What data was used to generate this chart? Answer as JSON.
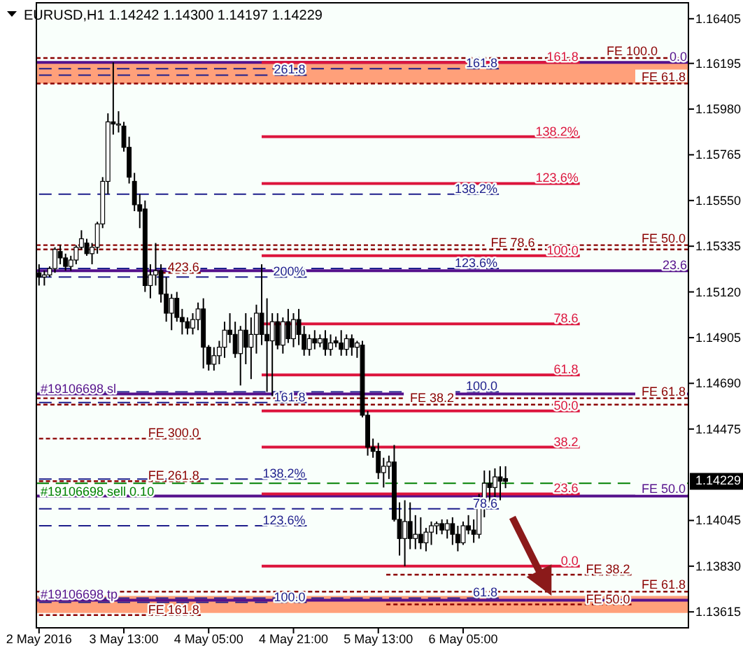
{
  "chart_data": {
    "type": "candlestick",
    "title": "EURUSD,H1  1.14242 1.14300 1.14197 1.14229",
    "x": [
      "2016-05-02T21:00",
      "2016-05-02T22:00",
      "2016-05-02T23:00",
      "2016-05-03T00:00",
      "2016-05-03T01:00",
      "2016-05-03T02:00",
      "2016-05-03T03:00",
      "2016-05-03T04:00",
      "2016-05-03T05:00",
      "2016-05-03T06:00",
      "2016-05-03T07:00",
      "2016-05-03T08:00",
      "2016-05-03T09:00",
      "2016-05-03T10:00",
      "2016-05-03T11:00",
      "2016-05-03T12:00",
      "2016-05-03T13:00",
      "2016-05-03T14:00",
      "2016-05-03T15:00",
      "2016-05-03T16:00",
      "2016-05-03T17:00",
      "2016-05-03T18:00",
      "2016-05-03T19:00",
      "2016-05-03T20:00",
      "2016-05-03T21:00",
      "2016-05-03T22:00",
      "2016-05-03T23:00",
      "2016-05-04T00:00",
      "2016-05-04T01:00",
      "2016-05-04T02:00",
      "2016-05-04T03:00",
      "2016-05-04T04:00",
      "2016-05-04T05:00",
      "2016-05-04T06:00",
      "2016-05-04T07:00",
      "2016-05-04T08:00",
      "2016-05-04T09:00",
      "2016-05-04T10:00",
      "2016-05-04T11:00",
      "2016-05-04T12:00",
      "2016-05-04T13:00",
      "2016-05-04T14:00",
      "2016-05-04T15:00",
      "2016-05-04T16:00",
      "2016-05-04T17:00",
      "2016-05-04T18:00",
      "2016-05-04T19:00",
      "2016-05-04T20:00",
      "2016-05-04T21:00",
      "2016-05-04T22:00",
      "2016-05-04T23:00",
      "2016-05-05T00:00",
      "2016-05-05T01:00",
      "2016-05-05T02:00",
      "2016-05-05T03:00",
      "2016-05-05T04:00",
      "2016-05-05T05:00",
      "2016-05-05T06:00",
      "2016-05-05T07:00",
      "2016-05-05T08:00",
      "2016-05-05T09:00",
      "2016-05-05T10:00",
      "2016-05-05T11:00",
      "2016-05-05T12:00",
      "2016-05-05T13:00",
      "2016-05-05T14:00",
      "2016-05-05T15:00",
      "2016-05-05T16:00",
      "2016-05-05T17:00",
      "2016-05-05T18:00",
      "2016-05-05T19:00",
      "2016-05-05T20:00",
      "2016-05-05T21:00",
      "2016-05-05T22:00",
      "2016-05-05T23:00",
      "2016-05-06T00:00",
      "2016-05-06T01:00",
      "2016-05-06T02:00",
      "2016-05-06T03:00",
      "2016-05-06T04:00",
      "2016-05-06T05:00",
      "2016-05-06T06:00",
      "2016-05-06T07:00",
      "2016-05-06T08:00",
      "2016-05-06T09:00",
      "2016-05-06T10:00",
      "2016-05-06T11:00",
      "2016-05-06T12:00",
      "2016-05-06T13:00"
    ],
    "ohlc": [
      [
        1.1521,
        1.1525,
        1.1515,
        1.1519
      ],
      [
        1.1519,
        1.1522,
        1.1515,
        1.152
      ],
      [
        1.152,
        1.1524,
        1.1519,
        1.1523
      ],
      [
        1.1523,
        1.1533,
        1.1521,
        1.1532
      ],
      [
        1.1531,
        1.1534,
        1.1525,
        1.1528
      ],
      [
        1.1528,
        1.153,
        1.1522,
        1.1524
      ],
      [
        1.1524,
        1.1529,
        1.1522,
        1.1527
      ],
      [
        1.1527,
        1.1534,
        1.1525,
        1.1533
      ],
      [
        1.1533,
        1.1541,
        1.1532,
        1.1537
      ],
      [
        1.1535,
        1.1537,
        1.1529,
        1.153
      ],
      [
        1.153,
        1.1535,
        1.1525,
        1.1533
      ],
      [
        1.1533,
        1.1545,
        1.153,
        1.1544
      ],
      [
        1.1544,
        1.1566,
        1.1542,
        1.1564
      ],
      [
        1.1564,
        1.1596,
        1.1558,
        1.1592
      ],
      [
        1.1592,
        1.162,
        1.1586,
        1.1591
      ],
      [
        1.1591,
        1.1597,
        1.1587,
        1.1591
      ],
      [
        1.159,
        1.1592,
        1.1578,
        1.158
      ],
      [
        1.158,
        1.1585,
        1.1563,
        1.1566
      ],
      [
        1.1564,
        1.1568,
        1.155,
        1.1553
      ],
      [
        1.1553,
        1.1558,
        1.1542,
        1.155
      ],
      [
        1.1551,
        1.1555,
        1.1512,
        1.1515
      ],
      [
        1.1515,
        1.1525,
        1.1509,
        1.152
      ],
      [
        1.152,
        1.1535,
        1.1515,
        1.1522
      ],
      [
        1.1522,
        1.1525,
        1.1507,
        1.1511
      ],
      [
        1.1511,
        1.1519,
        1.1498,
        1.1502
      ],
      [
        1.1502,
        1.1511,
        1.1494,
        1.1509
      ],
      [
        1.1509,
        1.1512,
        1.1498,
        1.15
      ],
      [
        1.15,
        1.1504,
        1.1492,
        1.1498
      ],
      [
        1.1498,
        1.15,
        1.1492,
        1.1495
      ],
      [
        1.1495,
        1.1502,
        1.1492,
        1.1499
      ],
      [
        1.1499,
        1.1507,
        1.1494,
        1.1504
      ],
      [
        1.1504,
        1.1509,
        1.1476,
        1.1486
      ],
      [
        1.1486,
        1.1487,
        1.1475,
        1.1478
      ],
      [
        1.1478,
        1.1486,
        1.1475,
        1.1482
      ],
      [
        1.1482,
        1.1489,
        1.1478,
        1.1486
      ],
      [
        1.1486,
        1.1498,
        1.1481,
        1.1494
      ],
      [
        1.1494,
        1.1502,
        1.1488,
        1.1492
      ],
      [
        1.1492,
        1.1498,
        1.1481,
        1.1483
      ],
      [
        1.1483,
        1.1496,
        1.1468,
        1.1494
      ],
      [
        1.1494,
        1.1502,
        1.1478,
        1.1486
      ],
      [
        1.1486,
        1.15,
        1.1471,
        1.1492
      ],
      [
        1.1492,
        1.1506,
        1.1483,
        1.1502
      ],
      [
        1.1502,
        1.1525,
        1.1487,
        1.1492
      ],
      [
        1.1492,
        1.1509,
        1.1465,
        1.1489
      ],
      [
        1.1489,
        1.1502,
        1.1463,
        1.1498
      ],
      [
        1.1498,
        1.1502,
        1.1485,
        1.1487
      ],
      [
        1.1487,
        1.15,
        1.1483,
        1.1498
      ],
      [
        1.1498,
        1.1504,
        1.1488,
        1.149
      ],
      [
        1.149,
        1.1502,
        1.1486,
        1.1499
      ],
      [
        1.1499,
        1.1504,
        1.1487,
        1.1492
      ],
      [
        1.1492,
        1.1496,
        1.1482,
        1.1485
      ],
      [
        1.1485,
        1.1492,
        1.1482,
        1.149
      ],
      [
        1.149,
        1.1494,
        1.1485,
        1.1488
      ],
      [
        1.1488,
        1.1492,
        1.1486,
        1.149
      ],
      [
        1.149,
        1.1494,
        1.1482,
        1.1485
      ],
      [
        1.1485,
        1.1492,
        1.1482,
        1.1488
      ],
      [
        1.1489,
        1.1491,
        1.1486,
        1.1488
      ],
      [
        1.1488,
        1.1494,
        1.1482,
        1.1485
      ],
      [
        1.1485,
        1.1492,
        1.1482,
        1.149
      ],
      [
        1.149,
        1.1492,
        1.1482,
        1.1486
      ],
      [
        1.1486,
        1.1489,
        1.1481,
        1.1488
      ],
      [
        1.1487,
        1.1489,
        1.1453,
        1.1454
      ],
      [
        1.1454,
        1.1456,
        1.1435,
        1.1439
      ],
      [
        1.1439,
        1.1443,
        1.1434,
        1.1437
      ],
      [
        1.1437,
        1.1441,
        1.1424,
        1.1427
      ],
      [
        1.1427,
        1.1434,
        1.142,
        1.143
      ],
      [
        1.143,
        1.1435,
        1.1424,
        1.1432
      ],
      [
        1.1432,
        1.144,
        1.1404,
        1.1405
      ],
      [
        1.1405,
        1.1413,
        1.1388,
        1.1396
      ],
      [
        1.1396,
        1.1414,
        1.1383,
        1.1404
      ],
      [
        1.1404,
        1.1413,
        1.1391,
        1.1396
      ],
      [
        1.1396,
        1.1407,
        1.1391,
        1.1398
      ],
      [
        1.1398,
        1.1406,
        1.1391,
        1.1394
      ],
      [
        1.1394,
        1.1401,
        1.139,
        1.1399
      ],
      [
        1.1399,
        1.1404,
        1.1393,
        1.1402
      ],
      [
        1.1402,
        1.1404,
        1.1398,
        1.1403
      ],
      [
        1.1403,
        1.1405,
        1.1398,
        1.14
      ],
      [
        1.14,
        1.1405,
        1.1396,
        1.1403
      ],
      [
        1.1403,
        1.1406,
        1.1393,
        1.1398
      ],
      [
        1.1398,
        1.1402,
        1.139,
        1.1394
      ],
      [
        1.1394,
        1.1404,
        1.1393,
        1.1402
      ],
      [
        1.1402,
        1.1407,
        1.1398,
        1.14
      ],
      [
        1.14,
        1.1405,
        1.1394,
        1.1398
      ],
      [
        1.1398,
        1.1417,
        1.1396,
        1.1415
      ],
      [
        1.1415,
        1.1428,
        1.1406,
        1.1422
      ],
      [
        1.1422,
        1.1428,
        1.1413,
        1.142
      ],
      [
        1.142,
        1.1429,
        1.1415,
        1.1425
      ],
      [
        1.1425,
        1.143,
        1.1414,
        1.1423
      ],
      [
        1.14242,
        1.143,
        1.14197,
        1.14229
      ]
    ],
    "series": [
      {
        "type": "line",
        "x": [
          "2016-05-02T20:30",
          "2016-05-07T23:30"
        ],
        "values": [
          1.162,
          1.162
        ],
        "color": "#55118c",
        "line_style": "solid"
      },
      {
        "type": "line",
        "x": [
          "2016-05-02T20:30",
          "2016-05-07T23:30"
        ],
        "values": [
          1.1522,
          1.1522
        ],
        "color": "#55118c",
        "line_style": "solid"
      },
      {
        "type": "line",
        "x": [
          "2016-05-04T15:00",
          "2016-05-07T03:00"
        ],
        "values": [
          1.162,
          1.162
        ],
        "color": "#dc143c",
        "line_style": "solid"
      },
      {
        "type": "line",
        "x": [
          "2016-05-04T15:00",
          "2016-05-07T03:00"
        ],
        "values": [
          1.1585,
          1.1585
        ],
        "color": "#dc143c",
        "line_style": "solid"
      },
      {
        "type": "line",
        "x": [
          "2016-05-04T15:00",
          "2016-05-07T03:00"
        ],
        "values": [
          1.1563,
          1.1563
        ],
        "color": "#dc143c",
        "line_style": "solid"
      },
      {
        "type": "line",
        "x": [
          "2016-05-04T15:00",
          "2016-05-07T03:00"
        ],
        "values": [
          1.1529,
          1.1529
        ],
        "color": "#dc143c",
        "line_style": "solid"
      },
      {
        "type": "line",
        "x": [
          "2016-05-04T15:00",
          "2016-05-07T03:00"
        ],
        "values": [
          1.1497,
          1.1497
        ],
        "color": "#dc143c",
        "line_style": "solid"
      },
      {
        "type": "line",
        "x": [
          "2016-05-04T15:00",
          "2016-05-07T03:00"
        ],
        "values": [
          1.1473,
          1.1473
        ],
        "color": "#dc143c",
        "line_style": "solid"
      },
      {
        "type": "line",
        "x": [
          "2016-05-04T15:00",
          "2016-05-07T03:00"
        ],
        "values": [
          1.1456,
          1.1456
        ],
        "color": "#dc143c",
        "line_style": "solid"
      },
      {
        "type": "line",
        "x": [
          "2016-05-04T15:00",
          "2016-05-07T03:00"
        ],
        "values": [
          1.1439,
          1.1439
        ],
        "color": "#dc143c",
        "line_style": "solid"
      },
      {
        "type": "line",
        "x": [
          "2016-05-04T15:00",
          "2016-05-07T03:00"
        ],
        "values": [
          1.1417,
          1.1417
        ],
        "color": "#dc143c",
        "line_style": "solid"
      },
      {
        "type": "line",
        "x": [
          "2016-05-04T15:00",
          "2016-05-07T03:00"
        ],
        "values": [
          1.1383,
          1.1383
        ],
        "color": "#dc143c",
        "line_style": "solid"
      },
      {
        "type": "line",
        "x": [
          "2016-05-02T21:00",
          "2016-05-04T23:30"
        ],
        "values": [
          1.1614,
          1.1614
        ],
        "color": "#1e1e8c",
        "line_style": "dashed"
      },
      {
        "type": "line",
        "x": [
          "2016-05-02T21:00",
          "2016-05-04T23:30"
        ],
        "values": [
          1.1519,
          1.1519
        ],
        "color": "#1e1e8c",
        "line_style": "dashed"
      },
      {
        "type": "line",
        "x": [
          "2016-05-02T21:00",
          "2016-05-04T23:30"
        ],
        "values": [
          1.146,
          1.146
        ],
        "color": "#1e1e8c",
        "line_style": "dashed"
      },
      {
        "type": "line",
        "x": [
          "2016-05-02T21:00",
          "2016-05-04T23:30"
        ],
        "values": [
          1.1424,
          1.1424
        ],
        "color": "#1e1e8c",
        "line_style": "dashed"
      },
      {
        "type": "line",
        "x": [
          "2016-05-02T21:00",
          "2016-05-04T23:30"
        ],
        "values": [
          1.1402,
          1.1402
        ],
        "color": "#1e1e8c",
        "line_style": "dashed"
      },
      {
        "type": "line",
        "x": [
          "2016-05-02T21:00",
          "2016-05-04T23:30"
        ],
        "values": [
          1.1366,
          1.1366
        ],
        "color": "#1e1e8c",
        "line_style": "dashed"
      },
      {
        "type": "line",
        "x": [
          "2016-05-02T21:00",
          "2016-05-06T11:45"
        ],
        "values": [
          1.1617,
          1.1617
        ],
        "color": "#1e1e8c",
        "line_style": "dashed"
      },
      {
        "type": "line",
        "x": [
          "2016-05-02T21:00",
          "2016-05-06T11:45"
        ],
        "values": [
          1.1558,
          1.1558
        ],
        "color": "#1e1e8c",
        "line_style": "dashed"
      },
      {
        "type": "line",
        "x": [
          "2016-05-02T21:00",
          "2016-05-06T11:45"
        ],
        "values": [
          1.1523,
          1.1523
        ],
        "color": "#1e1e8c",
        "line_style": "dashed"
      },
      {
        "type": "line",
        "x": [
          "2016-05-02T21:00",
          "2016-05-06T11:45"
        ],
        "values": [
          1.1465,
          1.1465
        ],
        "color": "#1e1e8c",
        "line_style": "dashed"
      },
      {
        "type": "line",
        "x": [
          "2016-05-02T21:00",
          "2016-05-06T11:45"
        ],
        "values": [
          1.141,
          1.141
        ],
        "color": "#1e1e8c",
        "line_style": "dashed"
      },
      {
        "type": "line",
        "x": [
          "2016-05-02T21:00",
          "2016-05-06T11:45"
        ],
        "values": [
          1.1368,
          1.1368
        ],
        "color": "#1e1e8c",
        "line_style": "dashed"
      },
      {
        "type": "line",
        "x": [
          "2016-05-03T18:45",
          "2016-05-04T03:30"
        ],
        "values": [
          1.1521,
          1.1521
        ],
        "color": "#8b0000",
        "line_style": "dotted"
      },
      {
        "type": "line",
        "x": [
          "2016-05-02T21:00",
          "2016-05-04T03:30"
        ],
        "values": [
          1.1443,
          1.1443
        ],
        "color": "#8b0000",
        "line_style": "dotted"
      },
      {
        "type": "line",
        "x": [
          "2016-05-02T21:00",
          "2016-05-04T03:30"
        ],
        "values": [
          1.1423,
          1.1423
        ],
        "color": "#8b0000",
        "line_style": "dotted"
      },
      {
        "type": "line",
        "x": [
          "2016-05-02T21:00",
          "2016-05-04T03:30"
        ],
        "values": [
          1.136,
          1.136
        ],
        "color": "#8b0000",
        "line_style": "dotted"
      },
      {
        "type": "line",
        "x": [
          "2016-05-05T14:30",
          "2016-05-07T12:45"
        ],
        "values": [
          1.1379,
          1.1379
        ],
        "color": "#8b0000",
        "line_style": "dotted"
      },
      {
        "type": "line",
        "x": [
          "2016-05-05T14:30",
          "2016-05-07T12:45"
        ],
        "values": [
          1.1365,
          1.1365
        ],
        "color": "#8b0000",
        "line_style": "dotted"
      },
      {
        "type": "line",
        "x": [
          "2016-05-02T20:30",
          "2016-05-07T23:30"
        ],
        "values": [
          1.1464,
          1.1464
        ],
        "color": "#55118c",
        "line_style": "solid"
      },
      {
        "type": "line",
        "x": [
          "2016-05-02T20:30",
          "2016-05-07T23:30"
        ],
        "values": [
          1.1422,
          1.1422
        ],
        "color": "#008000",
        "line_style": "dashed"
      },
      {
        "type": "line",
        "x": [
          "2016-05-02T20:30",
          "2016-05-07T23:30"
        ],
        "values": [
          1.1367,
          1.1367
        ],
        "color": "#55118c",
        "line_style": "solid"
      }
    ],
    "ref_lines": [
      {
        "axis": "y",
        "value": 1.1416,
        "label": "FE 50.0",
        "color": "#55118c",
        "line_style": "solid"
      },
      {
        "axis": "y",
        "value": 1.1622,
        "label": "FE 100.0",
        "color": "#8b0000",
        "line_style": "dotted"
      },
      {
        "axis": "y",
        "value": 1.161,
        "label": "FE 61.8",
        "color": "#8b0000",
        "line_style": "dotted"
      },
      {
        "axis": "y",
        "value": 1.1534,
        "label": "FE 50.0",
        "color": "#8b0000",
        "line_style": "dotted"
      },
      {
        "axis": "y",
        "value": 1.1532,
        "label": "FE 78.6",
        "color": "#8b0000",
        "line_style": "dotted"
      },
      {
        "axis": "y",
        "value": 1.1462,
        "label": "FE 61.8",
        "color": "#8b0000",
        "line_style": "dotted"
      },
      {
        "axis": "y",
        "value": 1.1459,
        "label": "FE 38.2",
        "color": "#8b0000",
        "line_style": "dotted"
      },
      {
        "axis": "y",
        "value": 1.1371,
        "label": "FE 61.8",
        "color": "#8b0000",
        "line_style": "dotted"
      }
    ],
    "bands": [
      {
        "axis": "y",
        "from": 1.161,
        "to": 1.162,
        "color": "#ffa07a"
      },
      {
        "axis": "y",
        "from": 1.1361,
        "to": 1.1369,
        "color": "#ffa07a"
      }
    ],
    "annotations": [
      {
        "text": "0.0",
        "x": "2016-05-07T23:30",
        "y": 1.162
      },
      {
        "text": "23.6",
        "x": "2016-05-07T23:30",
        "y": 1.1522
      },
      {
        "text": "161.8",
        "x": "2016-05-07T03:00",
        "y": 1.162
      },
      {
        "text": "138.2%",
        "x": "2016-05-07T03:00",
        "y": 1.1585
      },
      {
        "text": "123.6%",
        "x": "2016-05-07T03:00",
        "y": 1.1563
      },
      {
        "text": "100.0",
        "x": "2016-05-07T03:00",
        "y": 1.1529
      },
      {
        "text": "78.6",
        "x": "2016-05-07T03:00",
        "y": 1.1497
      },
      {
        "text": "61.8",
        "x": "2016-05-07T03:00",
        "y": 1.1473
      },
      {
        "text": "50.0",
        "x": "2016-05-07T03:00",
        "y": 1.1456
      },
      {
        "text": "38.2",
        "x": "2016-05-07T03:00",
        "y": 1.1439
      },
      {
        "text": "23.6",
        "x": "2016-05-07T03:00",
        "y": 1.1417
      },
      {
        "text": "0.0",
        "x": "2016-05-07T03:00",
        "y": 1.1383
      },
      {
        "text": "261.8",
        "x": "2016-05-04T23:30",
        "y": 1.1614
      },
      {
        "text": "200%",
        "x": "2016-05-04T23:30",
        "y": 1.1519
      },
      {
        "text": "161.8",
        "x": "2016-05-04T23:30",
        "y": 1.146
      },
      {
        "text": "138.2%",
        "x": "2016-05-04T23:30",
        "y": 1.1424
      },
      {
        "text": "123.6%",
        "x": "2016-05-04T23:30",
        "y": 1.1402
      },
      {
        "text": "100.0",
        "x": "2016-05-04T23:30",
        "y": 1.1366
      },
      {
        "text": "161.8",
        "x": "2016-05-06T11:45",
        "y": 1.1617
      },
      {
        "text": "138.2%",
        "x": "2016-05-06T11:45",
        "y": 1.1558
      },
      {
        "text": "123.6%",
        "x": "2016-05-06T11:45",
        "y": 1.1523
      },
      {
        "text": "100.0",
        "x": "2016-05-06T11:45",
        "y": 1.1465
      },
      {
        "text": "78.6",
        "x": "2016-05-06T11:45",
        "y": 1.141
      },
      {
        "text": "61.8",
        "x": "2016-05-06T11:45",
        "y": 1.1368
      },
      {
        "text": "423.6",
        "x": "2016-05-04T03:30",
        "y": 1.1521
      },
      {
        "text": "FE 300.0",
        "x": "2016-05-04T03:30",
        "y": 1.1443
      },
      {
        "text": "FE 261.8",
        "x": "2016-05-04T03:30",
        "y": 1.1423
      },
      {
        "text": "FE 161.8",
        "x": "2016-05-04T03:30",
        "y": 1.136
      },
      {
        "text": "FE 38.2",
        "x": "2016-05-07T12:45",
        "y": 1.1379
      },
      {
        "text": "FE 50.0",
        "x": "2016-05-07T12:45",
        "y": 1.1365
      },
      {
        "text": "#19106698 sl",
        "x": "2016-05-02T20:30",
        "y": 1.1464
      },
      {
        "text": "#19106698 sell 0.10",
        "x": "2016-05-02T20:30",
        "y": 1.1422
      },
      {
        "text": "#19106698 tp",
        "x": "2016-05-02T20:30",
        "y": 1.1367
      },
      {
        "text": "1.14229",
        "y": 1.14229
      }
    ],
    "xlim": [
      "2016-05-02T20:30",
      "2016-05-07T23:30"
    ],
    "ylim": [
      1.1354,
      1.1648
    ],
    "xticks": [
      {
        "value": "2016-05-02T21:00",
        "label": "2 May 2016"
      },
      {
        "value": "2016-05-03T13:00",
        "label": "3 May 13:00"
      },
      {
        "value": "2016-05-04T05:00",
        "label": "4 May 05:00"
      },
      {
        "value": "2016-05-04T21:00",
        "label": "4 May 21:00"
      },
      {
        "value": "2016-05-05T13:00",
        "label": "5 May 13:00"
      },
      {
        "value": "2016-05-06T05:00",
        "label": "6 May 05:00"
      }
    ],
    "yticks": [
      {
        "value": 1.16405,
        "label": "1.16405"
      },
      {
        "value": 1.16195,
        "label": "1.16195"
      },
      {
        "value": 1.1598,
        "label": "1.15980"
      },
      {
        "value": 1.15765,
        "label": "1.15765"
      },
      {
        "value": 1.1555,
        "label": "1.15550"
      },
      {
        "value": 1.15335,
        "label": "1.15335"
      },
      {
        "value": 1.1512,
        "label": "1.15120"
      },
      {
        "value": 1.14905,
        "label": "1.14905"
      },
      {
        "value": 1.1469,
        "label": "1.14690"
      },
      {
        "value": 1.14475,
        "label": "1.14475"
      },
      {
        "value": 1.14045,
        "label": "1.14045"
      },
      {
        "value": 1.1383,
        "label": "1.13830"
      },
      {
        "value": 1.13615,
        "label": "1.13615"
      }
    ]
  }
}
